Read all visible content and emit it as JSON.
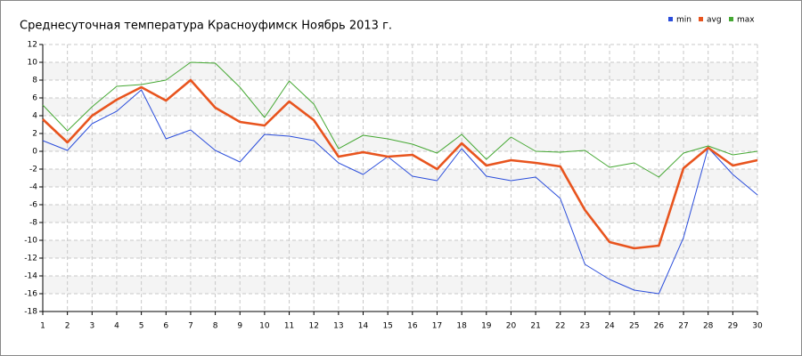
{
  "chart_data": {
    "type": "line",
    "title": "Среднесуточная температура Красноуфимск  Ноябрь 2013 г.",
    "x": [
      1,
      2,
      3,
      4,
      5,
      6,
      7,
      8,
      9,
      10,
      11,
      12,
      13,
      14,
      15,
      16,
      17,
      18,
      19,
      20,
      21,
      22,
      23,
      24,
      25,
      26,
      27,
      28,
      29,
      30
    ],
    "xlim": [
      1,
      30
    ],
    "xticks": [
      1,
      2,
      3,
      4,
      5,
      6,
      7,
      8,
      9,
      10,
      11,
      12,
      13,
      14,
      15,
      16,
      17,
      18,
      19,
      20,
      21,
      22,
      23,
      24,
      25,
      26,
      27,
      28,
      29,
      30
    ],
    "ylim": [
      -18,
      12
    ],
    "yticks": [
      -18,
      -16,
      -14,
      -12,
      -10,
      -8,
      -6,
      -4,
      -2,
      0,
      2,
      4,
      6,
      8,
      10,
      12
    ],
    "grid": true,
    "legend": "top-right",
    "series": [
      {
        "name": "min",
        "color": "#2a4ddb",
        "values": [
          1.2,
          0.1,
          3.1,
          4.5,
          6.9,
          1.4,
          2.4,
          0.1,
          -1.2,
          1.9,
          1.7,
          1.2,
          -1.3,
          -2.6,
          -0.6,
          -2.8,
          -3.3,
          0.3,
          -2.8,
          -3.3,
          -2.9,
          -5.3,
          -12.7,
          -14.4,
          -15.6,
          -16.0,
          -9.7,
          0.4,
          -2.6,
          -4.9
        ]
      },
      {
        "name": "avg",
        "color": "#e8541e",
        "values": [
          3.6,
          1.0,
          4.0,
          5.8,
          7.2,
          5.7,
          8.0,
          4.9,
          3.3,
          2.9,
          5.6,
          3.5,
          -0.6,
          -0.1,
          -0.6,
          -0.4,
          -2.0,
          0.9,
          -1.6,
          -1.0,
          -1.3,
          -1.7,
          -6.6,
          -10.2,
          -10.9,
          -10.6,
          -1.9,
          0.4,
          -1.6,
          -1.0
        ]
      },
      {
        "name": "max",
        "color": "#45a833",
        "values": [
          5.2,
          2.3,
          5.0,
          7.3,
          7.5,
          8.0,
          10.0,
          9.9,
          7.2,
          3.8,
          7.9,
          5.3,
          0.3,
          1.8,
          1.4,
          0.8,
          -0.2,
          1.9,
          -0.9,
          1.6,
          0.0,
          -0.1,
          0.1,
          -1.8,
          -1.3,
          -2.9,
          -0.2,
          0.6,
          -0.4,
          0.0
        ]
      }
    ]
  }
}
